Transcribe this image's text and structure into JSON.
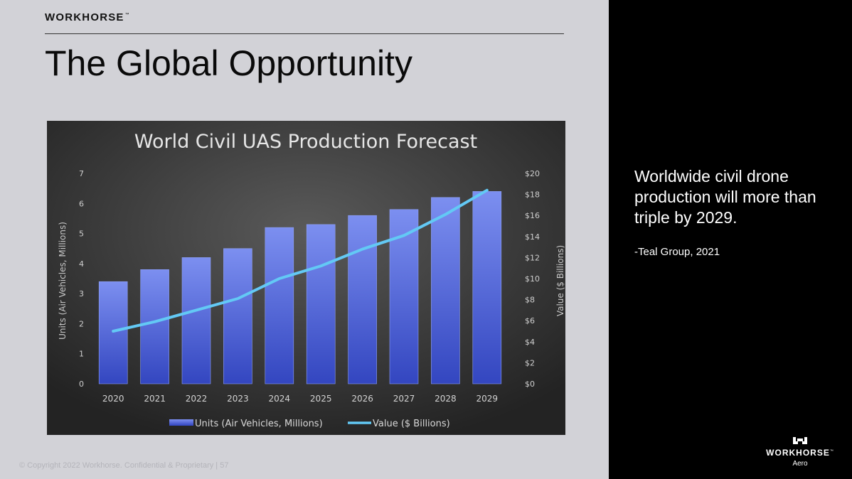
{
  "slide": {
    "brand": "WORKHORSE",
    "brand_tm": "™",
    "title": "The Global Opportunity",
    "copyright": "© Copyright 2022 Workhorse. Confidential & Proprietary   |   57"
  },
  "side": {
    "headline": "Worldwide civil drone production will more than triple by 2029.",
    "source": "-Teal Group, 2021",
    "logo_word": "WORKHORSE",
    "logo_tm": "™",
    "logo_sub": "Aero"
  },
  "colors": {
    "bar_top": "#7c8ff0",
    "bar_bottom": "#3346c0",
    "line": "#63c9f5"
  },
  "chart_data": {
    "type": "bar",
    "title": "World Civil UAS Production Forecast",
    "categories": [
      "2020",
      "2021",
      "2022",
      "2023",
      "2024",
      "2025",
      "2026",
      "2027",
      "2028",
      "2029"
    ],
    "series": [
      {
        "name": "Units (Air Vehicles, Millions)",
        "type": "bar",
        "axis": "left",
        "values": [
          3.4,
          3.8,
          4.2,
          4.5,
          5.2,
          5.3,
          5.6,
          5.8,
          6.2,
          6.4
        ]
      },
      {
        "name": "Value ($ Billions)",
        "type": "line",
        "axis": "right",
        "values": [
          5,
          5.9,
          7,
          8.1,
          10,
          11.2,
          12.8,
          14.1,
          16.1,
          18.4
        ]
      }
    ],
    "ylabel": "Units (Air Vehicles, Millions)",
    "y2label": "Value ($ Billions)",
    "ylim": [
      0,
      7
    ],
    "y2lim": [
      0,
      20
    ],
    "yticks": [
      "0",
      "1",
      "2",
      "3",
      "4",
      "5",
      "6",
      "7"
    ],
    "y2ticks": [
      "$0",
      "$2",
      "$4",
      "$6",
      "$8",
      "$10",
      "$12",
      "$14",
      "$16",
      "$18",
      "$20"
    ],
    "legend": [
      "Units (Air Vehicles, Millions)",
      "Value ($ Billions)"
    ],
    "legend_position": "bottom"
  }
}
